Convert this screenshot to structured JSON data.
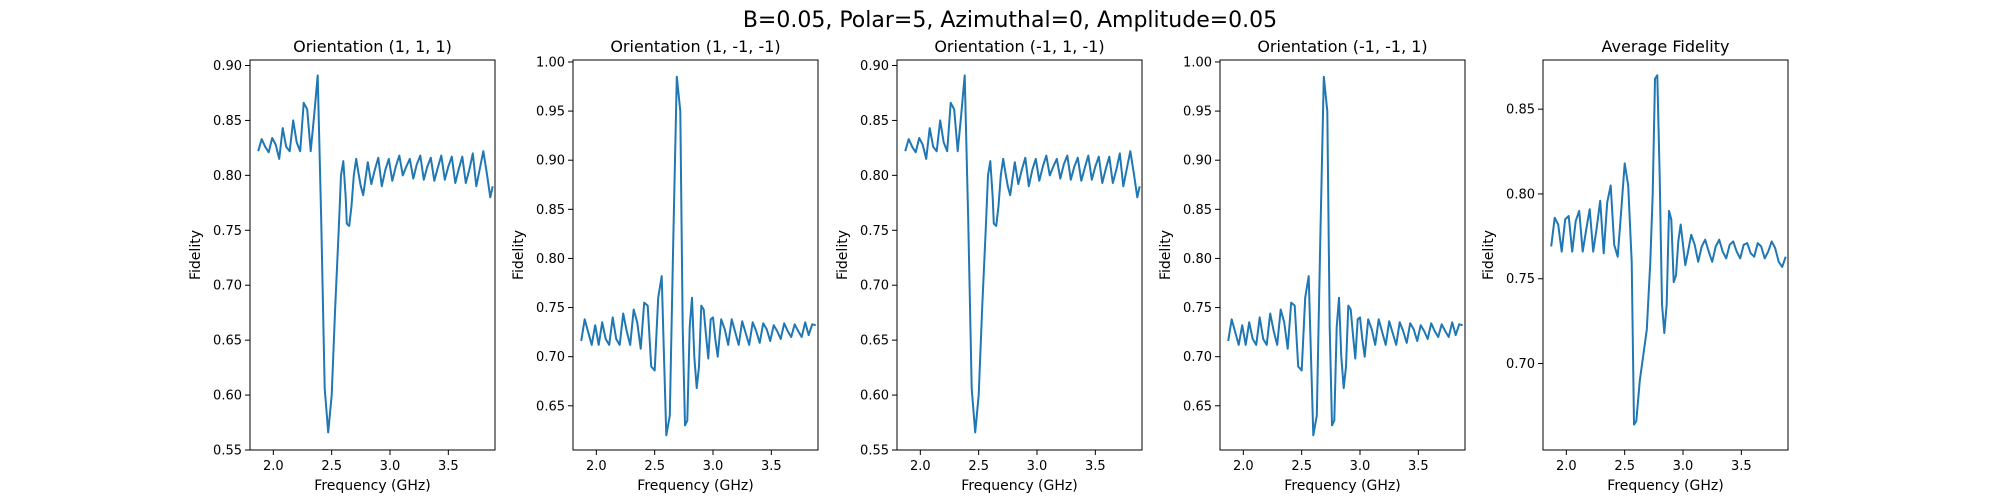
{
  "figure": {
    "suptitle": "B=0.05, Polar=5, Azimuthal=0, Amplitude=0.05",
    "line_color": "#1f77b4",
    "axes_color": "#000000"
  },
  "chart_data": [
    {
      "type": "line",
      "title": "Orientation (1, 1, 1)",
      "xlabel": "Frequency (GHz)",
      "ylabel": "Fidelity",
      "xlim": [
        1.8,
        3.9
      ],
      "ylim": [
        0.55,
        0.905
      ],
      "xticks": [
        2.0,
        2.5,
        3.0,
        3.5
      ],
      "xtick_labels": [
        "2.0",
        "2.5",
        "3.0",
        "3.5"
      ],
      "yticks": [
        0.55,
        0.6,
        0.65,
        0.7,
        0.75,
        0.8,
        0.85,
        0.9
      ],
      "ytick_labels": [
        "0.55",
        "0.60",
        "0.65",
        "0.70",
        "0.75",
        "0.80",
        "0.85",
        "0.90"
      ],
      "series": [
        {
          "x": [
            1.87,
            1.9,
            1.93,
            1.96,
            1.99,
            2.02,
            2.05,
            2.08,
            2.11,
            2.14,
            2.17,
            2.2,
            2.23,
            2.26,
            2.29,
            2.32,
            2.35,
            2.38,
            2.41,
            2.44,
            2.47,
            2.5,
            2.53,
            2.56,
            2.58,
            2.6,
            2.62,
            2.63,
            2.65,
            2.67,
            2.69,
            2.71,
            2.73,
            2.75,
            2.77,
            2.79,
            2.81,
            2.84,
            2.87,
            2.9,
            2.93,
            2.96,
            2.99,
            3.02,
            3.05,
            3.08,
            3.11,
            3.14,
            3.17,
            3.2,
            3.23,
            3.26,
            3.29,
            3.32,
            3.35,
            3.38,
            3.41,
            3.44,
            3.47,
            3.5,
            3.53,
            3.56,
            3.59,
            3.62,
            3.65,
            3.68,
            3.71,
            3.74,
            3.77,
            3.8,
            3.83,
            3.86,
            3.88
          ],
          "y": [
            0.822,
            0.833,
            0.826,
            0.821,
            0.834,
            0.828,
            0.815,
            0.843,
            0.826,
            0.822,
            0.85,
            0.83,
            0.822,
            0.866,
            0.86,
            0.822,
            0.855,
            0.891,
            0.76,
            0.606,
            0.566,
            0.6,
            0.68,
            0.75,
            0.8,
            0.813,
            0.78,
            0.756,
            0.754,
            0.772,
            0.8,
            0.815,
            0.802,
            0.79,
            0.782,
            0.797,
            0.812,
            0.792,
            0.805,
            0.816,
            0.79,
            0.805,
            0.815,
            0.795,
            0.808,
            0.818,
            0.8,
            0.808,
            0.815,
            0.797,
            0.81,
            0.818,
            0.796,
            0.808,
            0.816,
            0.795,
            0.807,
            0.818,
            0.796,
            0.808,
            0.817,
            0.793,
            0.806,
            0.817,
            0.793,
            0.805,
            0.82,
            0.79,
            0.806,
            0.822,
            0.802,
            0.78,
            0.79
          ]
        }
      ]
    },
    {
      "type": "line",
      "title": "Orientation (1, -1, -1)",
      "xlabel": "Frequency (GHz)",
      "ylabel": "Fidelity",
      "xlim": [
        1.8,
        3.9
      ],
      "ylim": [
        0.605,
        1.002
      ],
      "xticks": [
        2.0,
        2.5,
        3.0,
        3.5
      ],
      "xtick_labels": [
        "2.0",
        "2.5",
        "3.0",
        "3.5"
      ],
      "yticks": [
        0.65,
        0.7,
        0.75,
        0.8,
        0.85,
        0.9,
        0.95,
        1.0
      ],
      "ytick_labels": [
        "0.65",
        "0.70",
        "0.75",
        "0.80",
        "0.85",
        "0.90",
        "0.95",
        "1.00"
      ],
      "series": [
        {
          "x": [
            1.87,
            1.9,
            1.93,
            1.96,
            1.99,
            2.02,
            2.05,
            2.08,
            2.11,
            2.14,
            2.17,
            2.2,
            2.23,
            2.26,
            2.29,
            2.32,
            2.35,
            2.38,
            2.41,
            2.44,
            2.47,
            2.5,
            2.53,
            2.56,
            2.58,
            2.6,
            2.63,
            2.66,
            2.69,
            2.72,
            2.74,
            2.76,
            2.78,
            2.8,
            2.82,
            2.84,
            2.86,
            2.88,
            2.9,
            2.92,
            2.94,
            2.96,
            2.98,
            3.0,
            3.02,
            3.04,
            3.07,
            3.1,
            3.13,
            3.16,
            3.19,
            3.22,
            3.25,
            3.28,
            3.31,
            3.34,
            3.37,
            3.4,
            3.43,
            3.46,
            3.49,
            3.52,
            3.55,
            3.58,
            3.61,
            3.64,
            3.67,
            3.7,
            3.73,
            3.76,
            3.79,
            3.82,
            3.85,
            3.88
          ],
          "y": [
            0.716,
            0.738,
            0.725,
            0.712,
            0.732,
            0.712,
            0.735,
            0.718,
            0.712,
            0.74,
            0.718,
            0.712,
            0.744,
            0.726,
            0.712,
            0.748,
            0.735,
            0.708,
            0.755,
            0.752,
            0.69,
            0.686,
            0.76,
            0.782,
            0.7,
            0.62,
            0.64,
            0.82,
            0.985,
            0.95,
            0.73,
            0.63,
            0.635,
            0.73,
            0.76,
            0.7,
            0.668,
            0.69,
            0.752,
            0.748,
            0.722,
            0.698,
            0.738,
            0.74,
            0.718,
            0.7,
            0.738,
            0.728,
            0.712,
            0.738,
            0.725,
            0.712,
            0.736,
            0.724,
            0.712,
            0.735,
            0.726,
            0.714,
            0.734,
            0.728,
            0.716,
            0.732,
            0.726,
            0.718,
            0.734,
            0.726,
            0.72,
            0.733,
            0.726,
            0.72,
            0.735,
            0.722,
            0.733,
            0.732
          ]
        }
      ]
    },
    {
      "type": "line",
      "title": "Orientation (-1, 1, -1)",
      "xlabel": "Frequency (GHz)",
      "ylabel": "Fidelity",
      "xlim": [
        1.8,
        3.9
      ],
      "ylim": [
        0.55,
        0.905
      ],
      "xticks": [
        2.0,
        2.5,
        3.0,
        3.5
      ],
      "xtick_labels": [
        "2.0",
        "2.5",
        "3.0",
        "3.5"
      ],
      "yticks": [
        0.55,
        0.6,
        0.65,
        0.7,
        0.75,
        0.8,
        0.85,
        0.9
      ],
      "ytick_labels": [
        "0.55",
        "0.60",
        "0.65",
        "0.70",
        "0.75",
        "0.80",
        "0.85",
        "0.90"
      ],
      "series": [
        {
          "x": [
            1.87,
            1.9,
            1.93,
            1.96,
            1.99,
            2.02,
            2.05,
            2.08,
            2.11,
            2.14,
            2.17,
            2.2,
            2.23,
            2.26,
            2.29,
            2.32,
            2.35,
            2.38,
            2.41,
            2.44,
            2.47,
            2.5,
            2.53,
            2.56,
            2.58,
            2.6,
            2.62,
            2.63,
            2.65,
            2.67,
            2.69,
            2.71,
            2.73,
            2.75,
            2.77,
            2.79,
            2.81,
            2.84,
            2.87,
            2.9,
            2.93,
            2.96,
            2.99,
            3.02,
            3.05,
            3.08,
            3.11,
            3.14,
            3.17,
            3.2,
            3.23,
            3.26,
            3.29,
            3.32,
            3.35,
            3.38,
            3.41,
            3.44,
            3.47,
            3.5,
            3.53,
            3.56,
            3.59,
            3.62,
            3.65,
            3.68,
            3.71,
            3.74,
            3.77,
            3.8,
            3.83,
            3.86,
            3.88
          ],
          "y": [
            0.822,
            0.833,
            0.826,
            0.821,
            0.834,
            0.828,
            0.815,
            0.843,
            0.826,
            0.822,
            0.85,
            0.83,
            0.822,
            0.866,
            0.86,
            0.822,
            0.855,
            0.891,
            0.76,
            0.606,
            0.566,
            0.6,
            0.68,
            0.75,
            0.8,
            0.813,
            0.78,
            0.756,
            0.754,
            0.772,
            0.8,
            0.815,
            0.802,
            0.79,
            0.782,
            0.797,
            0.812,
            0.792,
            0.805,
            0.816,
            0.79,
            0.805,
            0.815,
            0.795,
            0.808,
            0.818,
            0.8,
            0.808,
            0.815,
            0.797,
            0.81,
            0.818,
            0.796,
            0.808,
            0.816,
            0.795,
            0.807,
            0.818,
            0.796,
            0.808,
            0.817,
            0.793,
            0.806,
            0.817,
            0.793,
            0.805,
            0.82,
            0.79,
            0.806,
            0.822,
            0.802,
            0.78,
            0.79
          ]
        }
      ]
    },
    {
      "type": "line",
      "title": "Orientation (-1, -1, 1)",
      "xlabel": "Frequency (GHz)",
      "ylabel": "Fidelity",
      "xlim": [
        1.8,
        3.9
      ],
      "ylim": [
        0.605,
        1.002
      ],
      "xticks": [
        2.0,
        2.5,
        3.0,
        3.5
      ],
      "xtick_labels": [
        "2.0",
        "2.5",
        "3.0",
        "3.5"
      ],
      "yticks": [
        0.65,
        0.7,
        0.75,
        0.8,
        0.85,
        0.9,
        0.95,
        1.0
      ],
      "ytick_labels": [
        "0.65",
        "0.70",
        "0.75",
        "0.80",
        "0.85",
        "0.90",
        "0.95",
        "1.00"
      ],
      "series": [
        {
          "x": [
            1.87,
            1.9,
            1.93,
            1.96,
            1.99,
            2.02,
            2.05,
            2.08,
            2.11,
            2.14,
            2.17,
            2.2,
            2.23,
            2.26,
            2.29,
            2.32,
            2.35,
            2.38,
            2.41,
            2.44,
            2.47,
            2.5,
            2.53,
            2.56,
            2.58,
            2.6,
            2.63,
            2.66,
            2.69,
            2.72,
            2.74,
            2.76,
            2.78,
            2.8,
            2.82,
            2.84,
            2.86,
            2.88,
            2.9,
            2.92,
            2.94,
            2.96,
            2.98,
            3.0,
            3.02,
            3.04,
            3.07,
            3.1,
            3.13,
            3.16,
            3.19,
            3.22,
            3.25,
            3.28,
            3.31,
            3.34,
            3.37,
            3.4,
            3.43,
            3.46,
            3.49,
            3.52,
            3.55,
            3.58,
            3.61,
            3.64,
            3.67,
            3.7,
            3.73,
            3.76,
            3.79,
            3.82,
            3.85,
            3.88
          ],
          "y": [
            0.716,
            0.738,
            0.725,
            0.712,
            0.732,
            0.712,
            0.735,
            0.718,
            0.712,
            0.74,
            0.718,
            0.712,
            0.744,
            0.726,
            0.712,
            0.748,
            0.735,
            0.708,
            0.755,
            0.752,
            0.69,
            0.686,
            0.76,
            0.782,
            0.7,
            0.62,
            0.64,
            0.82,
            0.985,
            0.95,
            0.73,
            0.63,
            0.635,
            0.73,
            0.76,
            0.7,
            0.668,
            0.69,
            0.752,
            0.748,
            0.722,
            0.698,
            0.738,
            0.74,
            0.718,
            0.7,
            0.738,
            0.728,
            0.712,
            0.738,
            0.725,
            0.712,
            0.736,
            0.724,
            0.712,
            0.735,
            0.726,
            0.714,
            0.734,
            0.728,
            0.716,
            0.732,
            0.726,
            0.718,
            0.734,
            0.726,
            0.72,
            0.733,
            0.726,
            0.72,
            0.735,
            0.722,
            0.733,
            0.732
          ]
        }
      ]
    },
    {
      "type": "line",
      "title": "Average Fidelity",
      "xlabel": "Frequency (GHz)",
      "ylabel": "Fidelity",
      "xlim": [
        1.8,
        3.9
      ],
      "ylim": [
        0.649,
        0.879
      ],
      "xticks": [
        2.0,
        2.5,
        3.0,
        3.5
      ],
      "xtick_labels": [
        "2.0",
        "2.5",
        "3.0",
        "3.5"
      ],
      "yticks": [
        0.7,
        0.75,
        0.8,
        0.85
      ],
      "ytick_labels": [
        "0.70",
        "0.75",
        "0.80",
        "0.85"
      ],
      "series": [
        {
          "x": [
            1.87,
            1.9,
            1.93,
            1.96,
            1.99,
            2.02,
            2.05,
            2.08,
            2.11,
            2.14,
            2.17,
            2.2,
            2.23,
            2.26,
            2.29,
            2.32,
            2.35,
            2.38,
            2.41,
            2.44,
            2.47,
            2.5,
            2.53,
            2.56,
            2.58,
            2.6,
            2.63,
            2.66,
            2.69,
            2.72,
            2.74,
            2.76,
            2.78,
            2.8,
            2.82,
            2.84,
            2.86,
            2.88,
            2.9,
            2.92,
            2.94,
            2.96,
            2.98,
            3.0,
            3.02,
            3.04,
            3.07,
            3.1,
            3.13,
            3.16,
            3.19,
            3.22,
            3.25,
            3.28,
            3.31,
            3.34,
            3.37,
            3.4,
            3.43,
            3.46,
            3.49,
            3.52,
            3.55,
            3.58,
            3.61,
            3.64,
            3.67,
            3.7,
            3.73,
            3.76,
            3.79,
            3.82,
            3.85,
            3.88
          ],
          "y": [
            0.769,
            0.786,
            0.782,
            0.766,
            0.785,
            0.787,
            0.766,
            0.784,
            0.79,
            0.766,
            0.779,
            0.791,
            0.766,
            0.78,
            0.796,
            0.765,
            0.795,
            0.805,
            0.77,
            0.763,
            0.79,
            0.818,
            0.805,
            0.76,
            0.664,
            0.666,
            0.69,
            0.705,
            0.72,
            0.76,
            0.8,
            0.868,
            0.87,
            0.81,
            0.735,
            0.718,
            0.735,
            0.79,
            0.785,
            0.748,
            0.752,
            0.772,
            0.782,
            0.77,
            0.758,
            0.765,
            0.776,
            0.77,
            0.76,
            0.769,
            0.773,
            0.766,
            0.76,
            0.769,
            0.773,
            0.766,
            0.762,
            0.77,
            0.772,
            0.766,
            0.762,
            0.77,
            0.771,
            0.765,
            0.763,
            0.771,
            0.769,
            0.762,
            0.766,
            0.772,
            0.768,
            0.76,
            0.757,
            0.763
          ]
        }
      ]
    }
  ]
}
